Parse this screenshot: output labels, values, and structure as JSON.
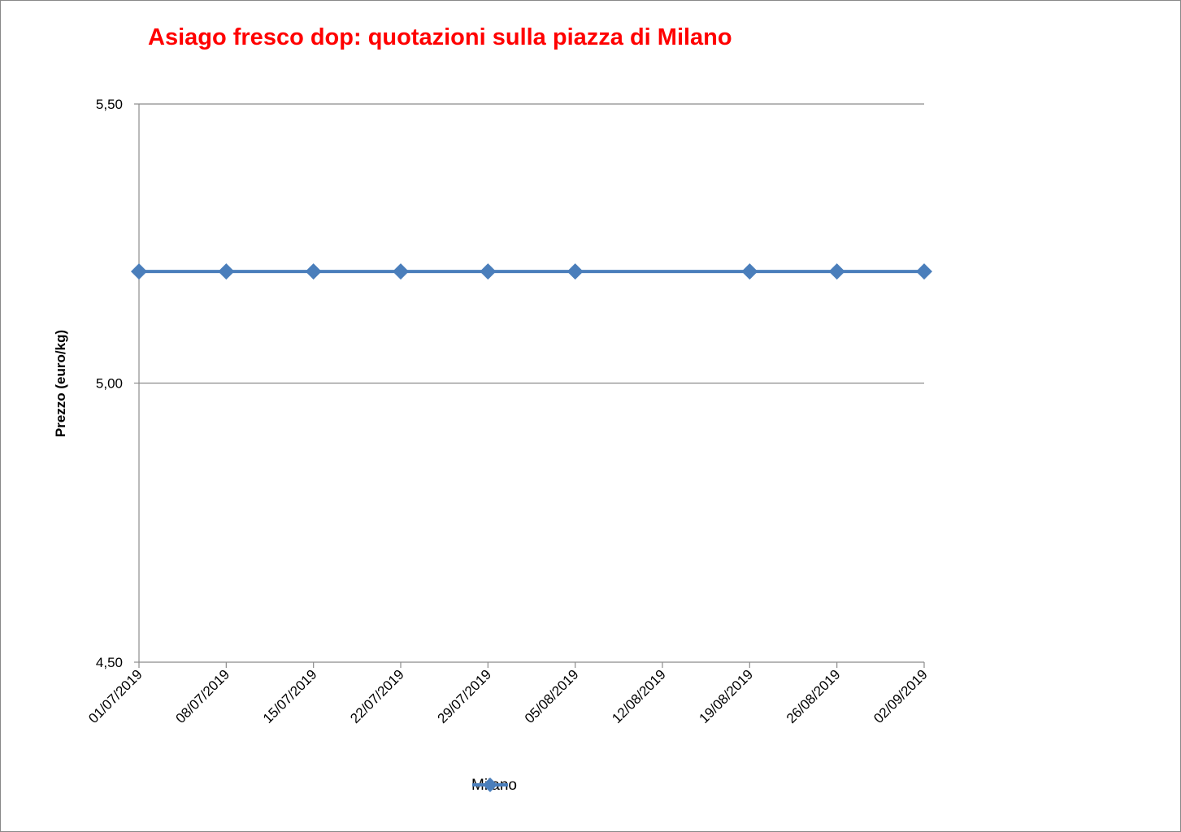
{
  "chart_data": {
    "type": "line",
    "title": "Asiago fresco dop: quotazioni sulla piazza di Milano",
    "ylabel": "Prezzo (euro/kg)",
    "xlabel": "",
    "ylim": [
      4.5,
      5.5
    ],
    "y_ticks": [
      "4,50",
      "5,00",
      "5,50"
    ],
    "y_tick_values": [
      4.5,
      5.0,
      5.5
    ],
    "categories": [
      "01/07/2019",
      "08/07/2019",
      "15/07/2019",
      "22/07/2019",
      "29/07/2019",
      "05/08/2019",
      "12/08/2019",
      "19/08/2019",
      "26/08/2019",
      "02/09/2019"
    ],
    "series": [
      {
        "name": "Milano",
        "color": "#4a7ebb",
        "values": [
          5.2,
          5.2,
          5.2,
          5.2,
          5.2,
          5.2,
          null,
          5.2,
          5.2,
          5.2
        ]
      }
    ],
    "grid": "horizontal",
    "legend_position": "bottom",
    "title_color": "#ff0000"
  }
}
